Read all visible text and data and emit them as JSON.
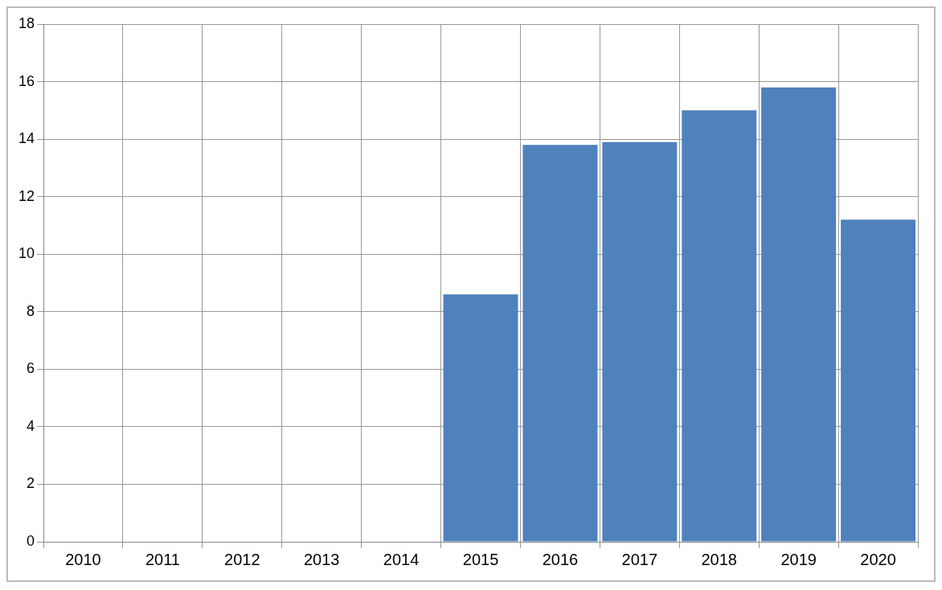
{
  "chart_data": {
    "type": "bar",
    "categories": [
      "2010",
      "2011",
      "2012",
      "2013",
      "2014",
      "2015",
      "2016",
      "2017",
      "2018",
      "2019",
      "2020"
    ],
    "values": [
      null,
      null,
      null,
      null,
      null,
      8.6,
      13.8,
      13.9,
      15.0,
      15.8,
      11.2
    ],
    "color": "#4f81bd",
    "ylim": [
      0,
      18
    ],
    "yticks": [
      0,
      2,
      4,
      6,
      8,
      10,
      12,
      14,
      16,
      18
    ],
    "grid": true,
    "legend": false
  }
}
